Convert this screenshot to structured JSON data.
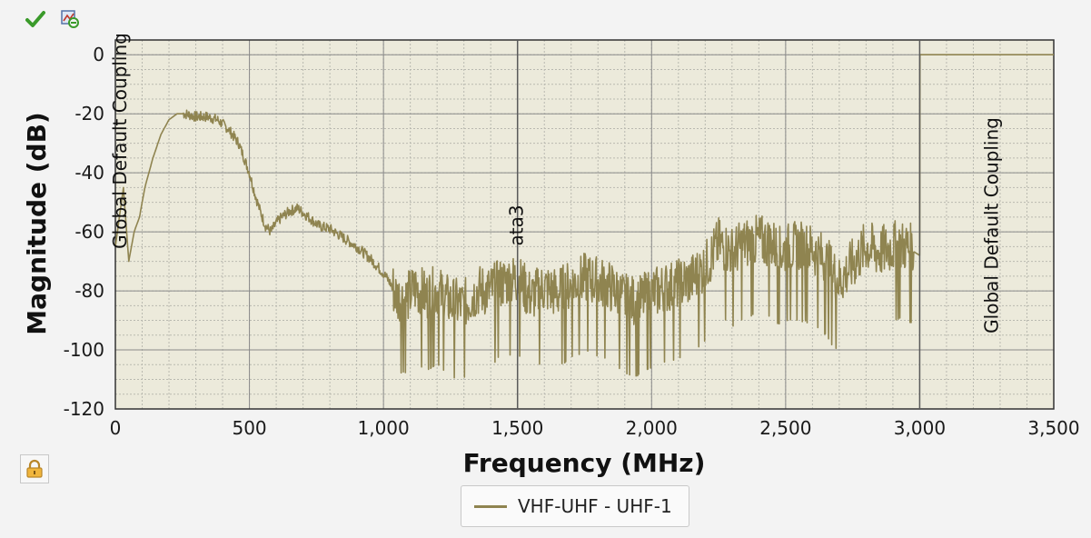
{
  "toolbar": {
    "accept_icon": "check-icon",
    "reset_icon": "reset-view-icon"
  },
  "lock": {
    "icon": "lock-icon"
  },
  "colors": {
    "plot_bg": "#eceadb",
    "trace": "#8f8450",
    "marker_line": "#5a5a5a",
    "grid_major": "#8a8a8a",
    "grid_minor": "#b9b9b0"
  },
  "chart_data": {
    "type": "line",
    "title": "",
    "xlabel": "Frequency (MHz)",
    "ylabel": "Magnitude (dB)",
    "xlim": [
      0,
      3500
    ],
    "ylim": [
      -120,
      5
    ],
    "x_ticks": [
      0,
      500,
      1000,
      1500,
      2000,
      2500,
      3000,
      3500
    ],
    "x_tick_labels": [
      "0",
      "500",
      "1,000",
      "1,500",
      "2,000",
      "2,500",
      "3,000",
      "3,500"
    ],
    "y_ticks": [
      0,
      -20,
      -40,
      -60,
      -80,
      -100,
      -120
    ],
    "y_tick_labels": [
      "0",
      "-20",
      "-40",
      "-60",
      "-80",
      "-100",
      "-120"
    ],
    "grid": true,
    "legend_position": "bottom-center",
    "series": [
      {
        "name": "VHF-UHF - UHF-1",
        "color": "#8f8450",
        "x": [
          0,
          30,
          50,
          70,
          90,
          110,
          140,
          170,
          200,
          230,
          260,
          300,
          340,
          380,
          420,
          460,
          500,
          520,
          540,
          560,
          580,
          600,
          620,
          650,
          680,
          720,
          760,
          800,
          850,
          900,
          950,
          1000,
          1030,
          1050,
          1080,
          1120,
          1160,
          1200,
          1250,
          1300,
          1350,
          1400,
          1450,
          1500,
          1550,
          1600,
          1650,
          1700,
          1750,
          1800,
          1850,
          1900,
          1950,
          2000,
          2050,
          2100,
          2150,
          2200,
          2250,
          2300,
          2350,
          2400,
          2450,
          2480,
          2500,
          2550,
          2600,
          2650,
          2700,
          2750,
          2800,
          2850,
          2900,
          2950,
          3000,
          3001,
          3200,
          3400,
          3500
        ],
        "y": [
          -65,
          -45,
          -70,
          -60,
          -55,
          -45,
          -35,
          -27,
          -22,
          -20,
          -20,
          -21,
          -21,
          -22,
          -25,
          -30,
          -40,
          -47,
          -53,
          -58,
          -60,
          -57,
          -55,
          -53,
          -52,
          -55,
          -58,
          -59,
          -62,
          -65,
          -69,
          -74,
          -78,
          -82,
          -83,
          -79,
          -82,
          -80,
          -84,
          -85,
          -80,
          -80,
          -77,
          -76,
          -82,
          -79,
          -81,
          -78,
          -76,
          -77,
          -79,
          -83,
          -84,
          -81,
          -79,
          -78,
          -76,
          -72,
          -64,
          -67,
          -64,
          -63,
          -64,
          -67,
          -66,
          -65,
          -66,
          -70,
          -77,
          -71,
          -65,
          -67,
          -65,
          -65,
          -68,
          0,
          0,
          0,
          0
        ]
      }
    ],
    "annotations": [
      {
        "x": 0,
        "label": "Global Default Coupling"
      },
      {
        "x": 1500,
        "label": "ata3"
      },
      {
        "x": 3000,
        "label": "Global Default Coupling"
      }
    ]
  }
}
